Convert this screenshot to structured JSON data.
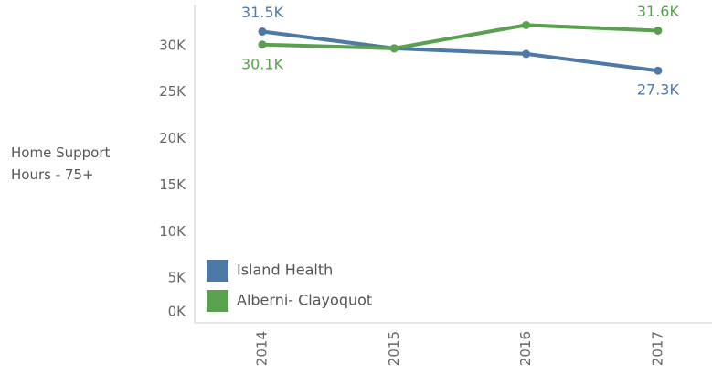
{
  "chart_data": {
    "type": "line",
    "y_label": "Home Support Hours - 75+",
    "categories": [
      "2014",
      "2015",
      "2016",
      "2017"
    ],
    "series": [
      {
        "name": "Island Health",
        "color": "#4e79a7",
        "values": [
          31500,
          29700,
          29100,
          27300
        ],
        "value_labels": [
          "31.5K",
          null,
          null,
          "27.3K"
        ]
      },
      {
        "name": "Alberni- Clayoquot",
        "color": "#59a14f",
        "values": [
          30100,
          29700,
          32200,
          31600
        ],
        "value_labels": [
          "30.1K",
          null,
          null,
          "31.6K"
        ]
      }
    ],
    "ylim": [
      0,
      34400
    ],
    "yticks": [
      {
        "value": 0,
        "label": "0K"
      },
      {
        "value": 5000,
        "label": "5K"
      },
      {
        "value": 10000,
        "label": "10K"
      },
      {
        "value": 15000,
        "label": "15K"
      },
      {
        "value": 20000,
        "label": "20K"
      },
      {
        "value": 25000,
        "label": "25K"
      },
      {
        "value": 30000,
        "label": "30K"
      }
    ],
    "legend": "lower left",
    "grid": false
  }
}
